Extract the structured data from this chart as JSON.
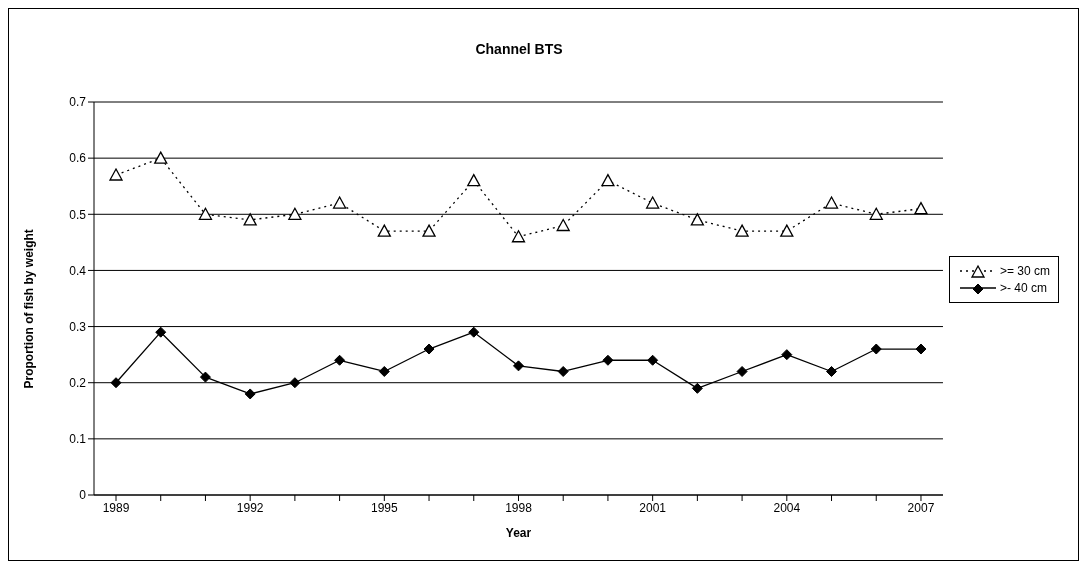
{
  "chart_data": {
    "type": "line",
    "title": "Channel BTS",
    "xlabel": "Year",
    "ylabel": "Proportion of fish by weight",
    "categories": [
      "1989",
      null,
      null,
      "1992",
      null,
      null,
      "1995",
      null,
      null,
      "1998",
      null,
      null,
      "2001",
      null,
      null,
      "2004",
      null,
      null,
      "2007"
    ],
    "series": [
      {
        "name": ">= 30 cm",
        "color": "#000000",
        "marker": "triangle",
        "line_style": "dotted",
        "values": [
          0.57,
          0.6,
          0.5,
          0.49,
          0.5,
          0.52,
          0.47,
          0.47,
          0.56,
          0.46,
          0.48,
          0.56,
          0.52,
          0.49,
          0.47,
          0.47,
          0.52,
          0.5,
          0.51
        ]
      },
      {
        "name": ">- 40 cm",
        "color": "#000000",
        "marker": "diamond",
        "line_style": "solid",
        "values": [
          0.2,
          0.29,
          0.21,
          0.18,
          0.2,
          0.24,
          0.22,
          0.26,
          0.29,
          0.23,
          0.22,
          0.24,
          0.24,
          0.19,
          0.22,
          0.25,
          0.22,
          0.26,
          0.26
        ]
      }
    ],
    "ylim": [
      0,
      0.7
    ],
    "yticks": [
      0,
      0.1,
      0.2,
      0.3,
      0.4,
      0.5,
      0.6,
      0.7
    ],
    "grid": "y",
    "legend": "right"
  }
}
